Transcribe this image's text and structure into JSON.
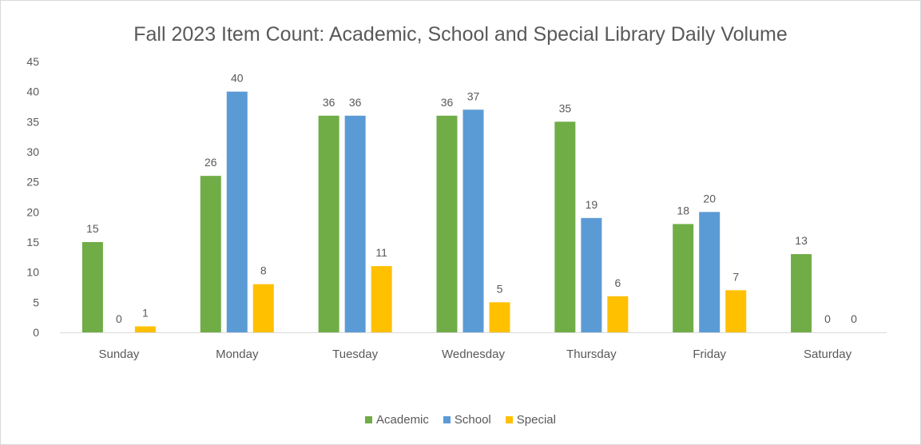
{
  "chart_data": {
    "type": "bar",
    "title": "Fall 2023 Item Count: Academic, School and Special Library Daily Volume",
    "xlabel": "",
    "ylabel": "",
    "ylim": [
      0,
      45
    ],
    "yticks": [
      "0",
      "5",
      "10",
      "15",
      "20",
      "25",
      "30",
      "35",
      "40",
      "45"
    ],
    "categories": [
      "Sunday",
      "Monday",
      "Tuesday",
      "Wednesday",
      "Thursday",
      "Friday",
      "Saturday"
    ],
    "series": [
      {
        "name": "Academic",
        "color": "#70ad47",
        "values": [
          15,
          26,
          36,
          36,
          35,
          18,
          13
        ]
      },
      {
        "name": "School",
        "color": "#5b9bd5",
        "values": [
          0,
          40,
          36,
          37,
          19,
          20,
          0
        ]
      },
      {
        "name": "Special",
        "color": "#ffc000",
        "values": [
          1,
          8,
          11,
          5,
          6,
          7,
          0
        ]
      }
    ],
    "data_labels": true,
    "grid": false,
    "legend_position": "bottom"
  }
}
